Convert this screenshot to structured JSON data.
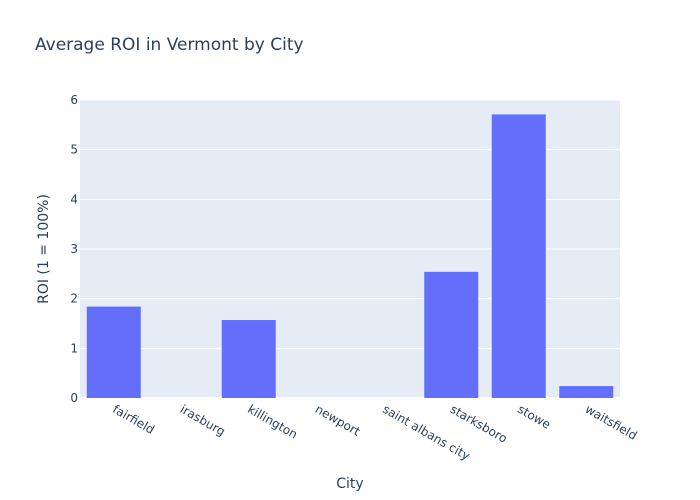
{
  "chart_data": {
    "type": "bar",
    "title": "Average ROI in Vermont by City",
    "xlabel": "City",
    "ylabel": "ROI (1 = 100%)",
    "categories": [
      "fairfield",
      "irasburg",
      "killington",
      "newport",
      "saint albans city",
      "starksboro",
      "stowe",
      "waitsfield"
    ],
    "values": [
      1.84,
      0,
      1.57,
      0,
      0,
      2.54,
      5.71,
      0.24
    ],
    "ylim": [
      0,
      6
    ],
    "yticks": [
      0,
      1,
      2,
      3,
      4,
      5,
      6
    ],
    "grid": true,
    "bar_color": "#636efa",
    "plot_bg_color": "#e5ecf6"
  }
}
